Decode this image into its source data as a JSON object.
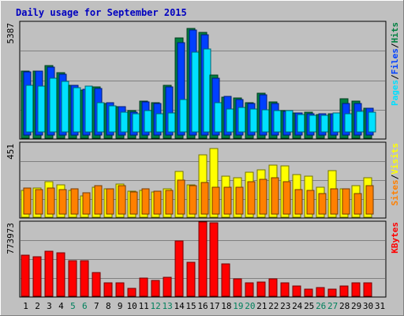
{
  "colors": {
    "background": "#C0C0C0",
    "grid": "#808080",
    "title": "#0000C0",
    "hits": "#008040",
    "files": "#0040FF",
    "pages": "#00E0FF",
    "visits": "#FFFF00",
    "sites": "#FF8000",
    "kbytes": "#FF0000",
    "weekend_label": "#00805C"
  },
  "chart_data": {
    "type": "bar",
    "title": "Daily usage for September 2015",
    "categories": [
      "1",
      "2",
      "3",
      "4",
      "5",
      "6",
      "7",
      "8",
      "9",
      "10",
      "11",
      "12",
      "13",
      "14",
      "15",
      "16",
      "17",
      "18",
      "19",
      "20",
      "21",
      "22",
      "23",
      "24",
      "25",
      "26",
      "27",
      "28",
      "29",
      "30",
      "31"
    ],
    "weekend_days": [
      "5",
      "6",
      "12",
      "13",
      "19",
      "20",
      "26",
      "27"
    ],
    "panels": [
      {
        "id": "top",
        "max_label": "5387",
        "ylim": [
          0,
          5387
        ],
        "grid": true,
        "legend": [
          {
            "label": "Hits",
            "color": "#008040"
          },
          {
            "label": "Files",
            "color": "#0040FF"
          },
          {
            "label": "Pages",
            "color": "#00E0FF"
          }
        ],
        "series": [
          {
            "name": "Hits",
            "color": "#008040",
            "values": [
              3300,
              3300,
              3580,
              3200,
              2580,
              2380,
              2520,
              1720,
              1550,
              1340,
              1830,
              1740,
              2610,
              4940,
              5380,
              5180,
              3090,
              2010,
              1960,
              1740,
              2220,
              1770,
              1350,
              1240,
              1270,
              1170,
              1220,
              1930,
              1840,
              1460,
              0
            ]
          },
          {
            "name": "Files",
            "color": "#0040FF",
            "values": [
              3100,
              3120,
              3320,
              3000,
              2430,
              2260,
              2300,
              1600,
              1390,
              1140,
              1620,
              1560,
              2370,
              4540,
              5150,
              4930,
              2800,
              1880,
              1750,
              1560,
              1960,
              1560,
              1160,
              1070,
              1060,
              1040,
              1060,
              1540,
              1540,
              1300,
              0
            ]
          },
          {
            "name": "Pages",
            "color": "#00E0FF",
            "values": [
              2300,
              2250,
              2620,
              2490,
              2170,
              2230,
              1430,
              1280,
              970,
              900,
              1050,
              900,
              920,
              1590,
              3930,
              4070,
              1450,
              1110,
              1210,
              1120,
              1070,
              1060,
              1040,
              860,
              820,
              830,
              920,
              880,
              1020,
              960,
              0
            ]
          }
        ]
      },
      {
        "id": "middle",
        "max_label": "451",
        "ylim": [
          0,
          451
        ],
        "grid": true,
        "legend": [
          {
            "label": "Visits",
            "color": "#FFFF00"
          },
          {
            "label": "Sites",
            "color": "#FF8000"
          }
        ],
        "series": [
          {
            "name": "Visits",
            "color": "#FFFF00",
            "values": [
              168,
              184,
              227,
              205,
              170,
              136,
              192,
              182,
              212,
              166,
              169,
              158,
              181,
              293,
              205,
              398,
              435,
              261,
              249,
              284,
              303,
              330,
              324,
              272,
              259,
              191,
              294,
              182,
              201,
              253,
              0
            ]
          },
          {
            "name": "Sites",
            "color": "#FF8000",
            "values": [
              164,
              154,
              163,
              156,
              162,
              134,
              181,
              160,
              181,
              138,
              159,
              145,
              148,
              214,
              179,
              201,
              172,
              170,
              168,
              204,
              219,
              232,
              205,
              157,
              152,
              129,
              162,
              159,
              128,
              181,
              0
            ]
          }
        ]
      },
      {
        "id": "bottom",
        "max_label": "773973",
        "ylim": [
          0,
          773973
        ],
        "grid": true,
        "legend": [
          {
            "label": "KBytes",
            "color": "#FF0000"
          }
        ],
        "series": [
          {
            "name": "KBytes",
            "color": "#FF0000",
            "values": [
              427000,
              408000,
              467000,
              454000,
              373000,
              373000,
              247000,
              141000,
              141000,
              84000,
              188000,
              166000,
              197000,
              575000,
              355000,
              773973,
              763000,
              338000,
              184000,
              141000,
              152000,
              182000,
              141000,
              106000,
              77000,
              91000,
              77000,
              105000,
              144000,
              141000,
              0
            ]
          }
        ]
      }
    ]
  }
}
